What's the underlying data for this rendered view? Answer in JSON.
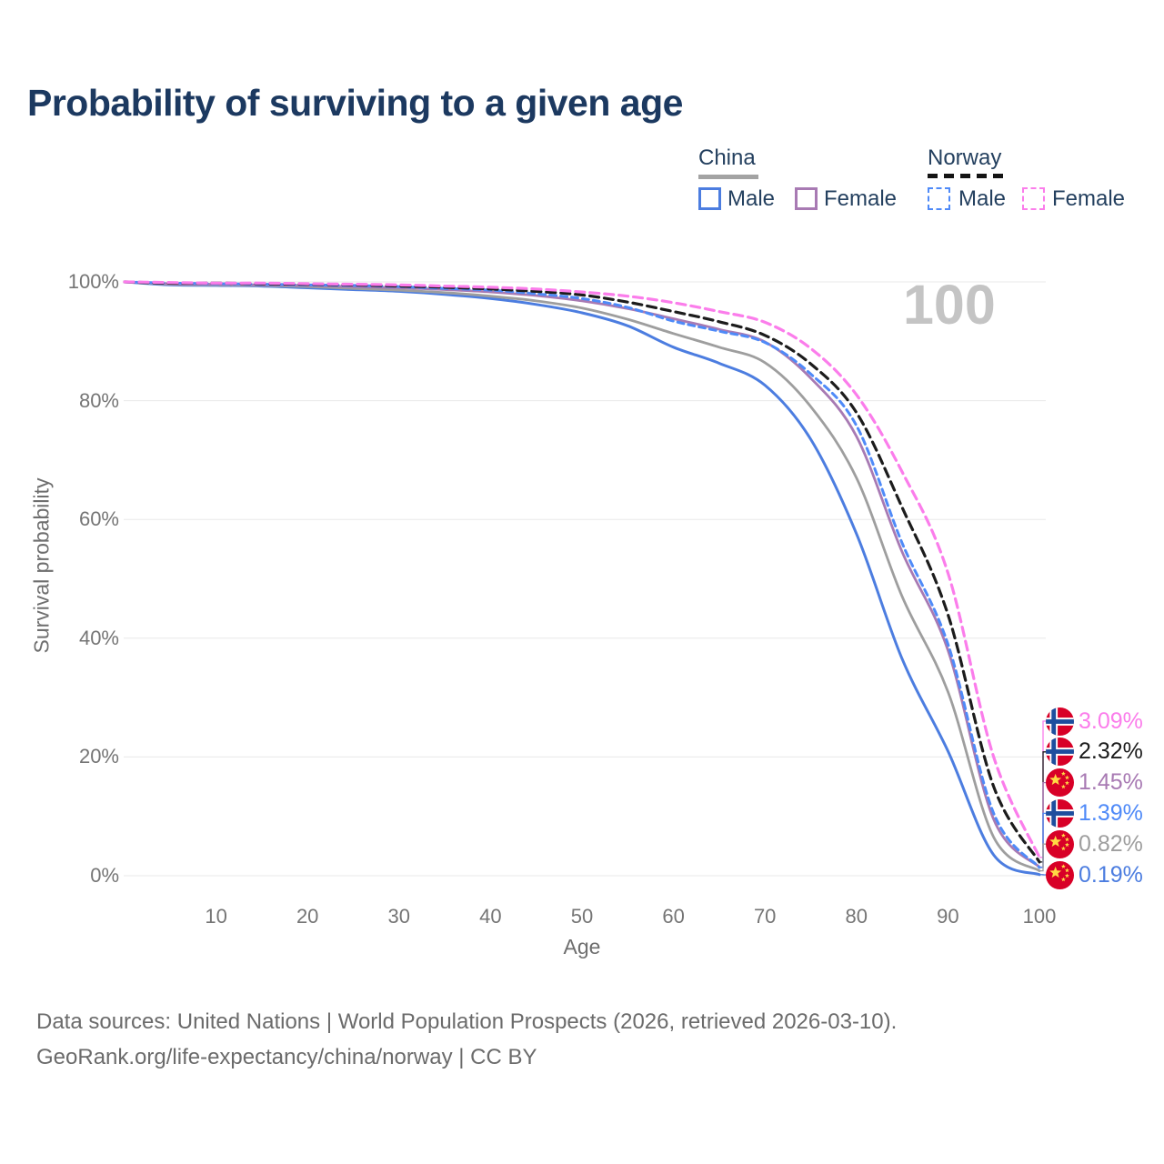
{
  "header": {
    "title": "Probability of surviving to a given age"
  },
  "legend": {
    "china": {
      "label": "China",
      "male": "Male",
      "female": "Female"
    },
    "norway": {
      "label": "Norway",
      "male": "Male",
      "female": "Female"
    }
  },
  "watermark": "100",
  "footer": {
    "line1": "Data sources: United Nations | World Population Prospects (2026, retrieved 2026-03-10).",
    "line2": "GeoRank.org/life-expectancy/china/norway | CC BY"
  },
  "colors": {
    "title": "#1c3960",
    "axis_text": "#757575",
    "gridline": "#e8e8e8",
    "watermark": "#c4c4c4"
  },
  "chart_data": {
    "type": "line",
    "title": "Probability of surviving to a given age",
    "xlabel": "Age",
    "ylabel": "Survival probability",
    "xlim": [
      0,
      100
    ],
    "ylim": [
      0,
      100
    ],
    "grid": true,
    "x_ticks": [
      10,
      20,
      30,
      40,
      50,
      60,
      70,
      80,
      90,
      100
    ],
    "y_ticks": [
      {
        "value": 0,
        "label": "0%"
      },
      {
        "value": 20,
        "label": "20%"
      },
      {
        "value": 40,
        "label": "40%"
      },
      {
        "value": 60,
        "label": "60%"
      },
      {
        "value": 80,
        "label": "80%"
      },
      {
        "value": 100,
        "label": "100%"
      }
    ],
    "x": [
      0,
      5,
      10,
      15,
      20,
      25,
      30,
      35,
      40,
      45,
      50,
      55,
      60,
      65,
      70,
      75,
      80,
      85,
      90,
      95,
      100
    ],
    "series": [
      {
        "id": "china-male",
        "country": "China",
        "sex": "Male",
        "color": "#4c7de0",
        "dash": null,
        "width": 3,
        "values": [
          100,
          99.5,
          99.4,
          99.3,
          99.0,
          98.7,
          98.4,
          97.9,
          97.2,
          96.2,
          94.8,
          92.6,
          89.0,
          86.3,
          82.6,
          73.5,
          57.6,
          36.5,
          21.0,
          3.5,
          0.19
        ],
        "end": {
          "label": "0.19%",
          "flag": "china"
        }
      },
      {
        "id": "china-total",
        "country": "China",
        "sex": "Both",
        "color": "#9e9e9e",
        "dash": null,
        "width": 2.8,
        "values": [
          100,
          99.6,
          99.5,
          99.4,
          99.2,
          98.9,
          98.6,
          98.2,
          97.6,
          96.8,
          95.6,
          93.7,
          91.3,
          89.0,
          86.4,
          79.0,
          67.0,
          47.0,
          31.0,
          6.5,
          0.82
        ],
        "end": {
          "label": "0.82%",
          "flag": "china"
        }
      },
      {
        "id": "china-female",
        "country": "China",
        "sex": "Female",
        "color": "#a87ab3",
        "dash": null,
        "width": 2.8,
        "values": [
          100,
          99.7,
          99.6,
          99.5,
          99.4,
          99.2,
          99.0,
          98.7,
          98.3,
          97.7,
          96.8,
          95.5,
          93.8,
          92.0,
          89.9,
          83.8,
          74.0,
          54.5,
          38.0,
          9.5,
          1.45
        ],
        "end": {
          "label": "1.45%",
          "flag": "china"
        }
      },
      {
        "id": "norway-male",
        "country": "Norway",
        "sex": "Male",
        "color": "#4f8af8",
        "dash": "7 5",
        "width": 3,
        "values": [
          100,
          99.8,
          99.7,
          99.6,
          99.5,
          99.4,
          99.2,
          98.9,
          98.6,
          98.0,
          97.2,
          95.7,
          93.4,
          91.7,
          89.8,
          84.5,
          75.8,
          56.0,
          39.0,
          10.5,
          1.39
        ],
        "end": {
          "label": "1.39%",
          "flag": "norway"
        }
      },
      {
        "id": "norway-total",
        "country": "Norway",
        "sex": "Both",
        "color": "#1c1c1c",
        "dash": "10 6",
        "width": 3.2,
        "values": [
          100,
          99.8,
          99.8,
          99.7,
          99.6,
          99.5,
          99.3,
          99.1,
          98.8,
          98.4,
          97.8,
          96.6,
          95.0,
          93.3,
          91.0,
          86.2,
          78.0,
          62.0,
          44.0,
          15.0,
          2.32
        ],
        "end": {
          "label": "2.32%",
          "flag": "norway"
        }
      },
      {
        "id": "norway-female",
        "country": "Norway",
        "sex": "Female",
        "color": "#fb7deb",
        "dash": "10 6",
        "width": 3.2,
        "values": [
          100,
          99.9,
          99.8,
          99.8,
          99.7,
          99.6,
          99.5,
          99.3,
          99.1,
          98.8,
          98.3,
          97.6,
          96.5,
          95.0,
          93.2,
          88.8,
          81.0,
          68.0,
          51.0,
          20.0,
          3.09
        ],
        "end": {
          "label": "3.09%",
          "flag": "norway"
        }
      }
    ],
    "legend_position": "top-right",
    "age_marker": "100"
  }
}
